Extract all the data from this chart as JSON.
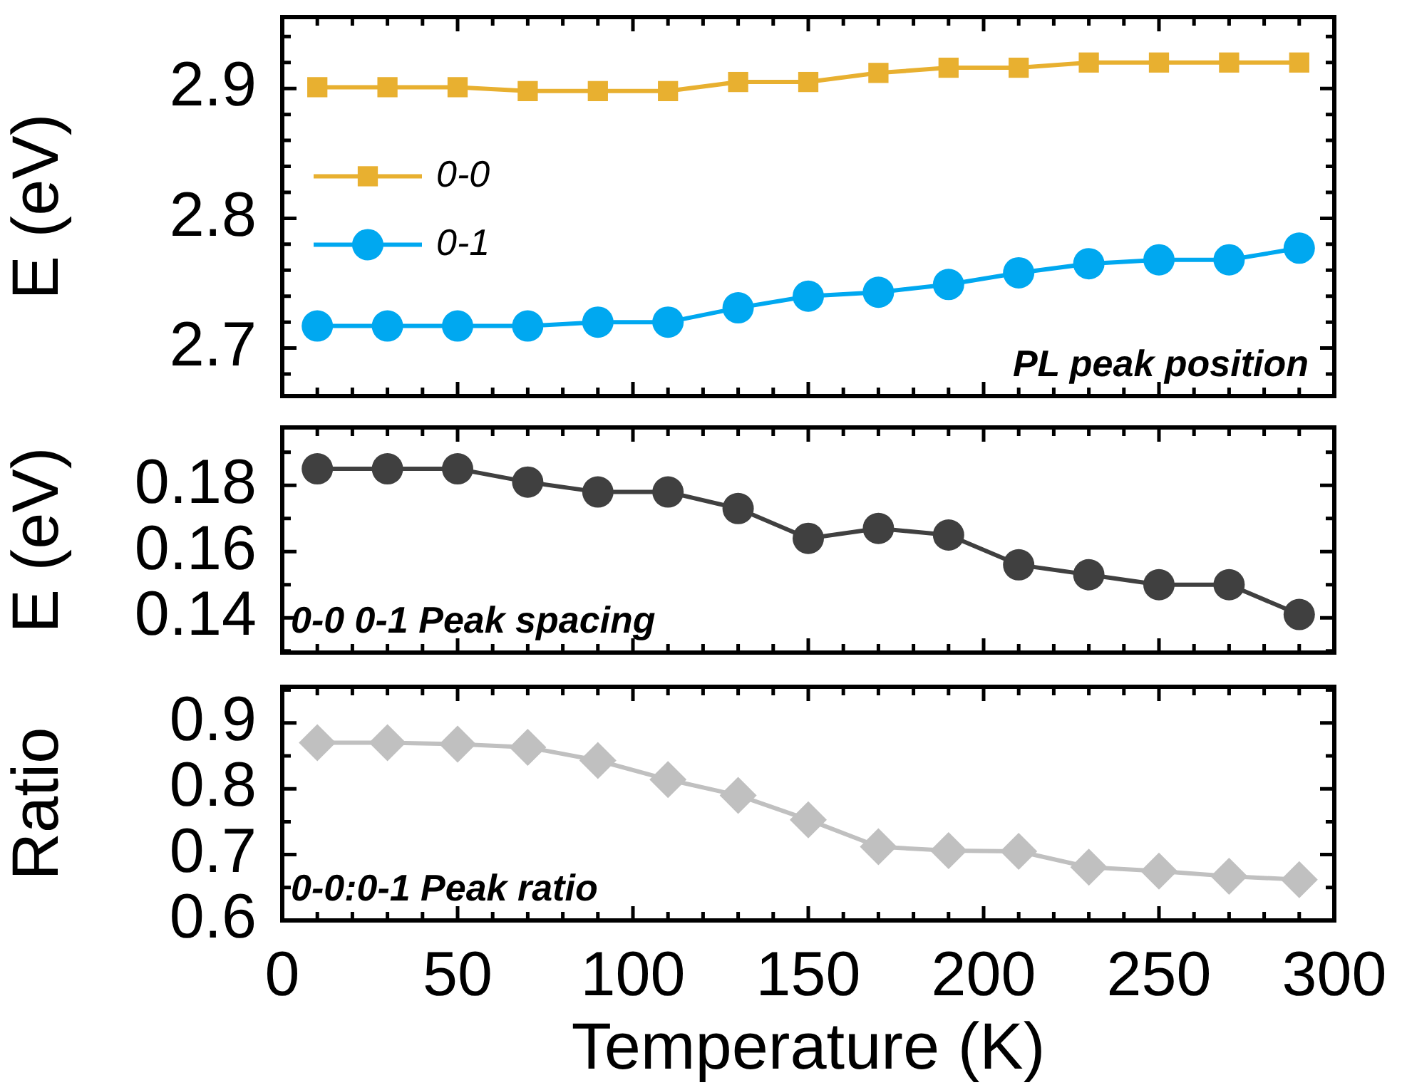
{
  "chart_data": [
    {
      "type": "line",
      "ylabel": "E (eV)",
      "annotations": [
        "PL peak position"
      ],
      "legend": "left",
      "tick_labels": "y",
      "xlim": [
        0,
        300
      ],
      "xticks": [
        0,
        {
          "value": 10,
          "label": null
        },
        {
          "value": 20,
          "label": null
        },
        {
          "value": 30,
          "label": null
        },
        {
          "value": 40,
          "label": null
        },
        {
          "value": 50,
          "label": null
        },
        {
          "value": 60,
          "label": null
        },
        {
          "value": 70,
          "label": null
        },
        {
          "value": 80,
          "label": null
        },
        {
          "value": 90,
          "label": null
        },
        {
          "value": 100,
          "label": null
        },
        {
          "value": 110,
          "label": null
        },
        {
          "value": 120,
          "label": null
        },
        {
          "value": 130,
          "label": null
        },
        {
          "value": 140,
          "label": null
        },
        {
          "value": 150,
          "label": null
        },
        {
          "value": 160,
          "label": null
        },
        {
          "value": 170,
          "label": null
        },
        {
          "value": 180,
          "label": null
        },
        {
          "value": 190,
          "label": null
        },
        {
          "value": 200,
          "label": null
        },
        {
          "value": 210,
          "label": null
        },
        {
          "value": 220,
          "label": null
        },
        {
          "value": 230,
          "label": null
        },
        {
          "value": 240,
          "label": null
        },
        {
          "value": 250,
          "label": null
        },
        {
          "value": 260,
          "label": null
        },
        {
          "value": 270,
          "label": null
        },
        {
          "value": 280,
          "label": null
        },
        {
          "value": 290,
          "label": null
        },
        {
          "value": 300,
          "label": null
        }
      ],
      "ylim": [
        2.663,
        2.955
      ],
      "yticks": [
        {
          "value": 2.68,
          "label": null
        },
        2.7,
        {
          "value": 2.72,
          "label": null
        },
        {
          "value": 2.74,
          "label": null
        },
        {
          "value": 2.76,
          "label": null
        },
        {
          "value": 2.78,
          "label": null
        },
        2.8,
        {
          "value": 2.82,
          "label": null
        },
        {
          "value": 2.84,
          "label": null
        },
        {
          "value": 2.86,
          "label": null
        },
        {
          "value": 2.88,
          "label": null
        },
        2.9,
        {
          "value": 2.92,
          "label": null
        },
        {
          "value": 2.94,
          "label": null
        }
      ],
      "x": [
        10,
        30,
        50,
        70,
        90,
        110,
        130,
        150,
        170,
        190,
        210,
        230,
        250,
        270,
        290
      ],
      "series": [
        {
          "name": "0-0",
          "color": "#e8b030",
          "marker": "square",
          "values": [
            2.901,
            2.901,
            2.901,
            2.898,
            2.898,
            2.898,
            2.905,
            2.905,
            2.912,
            2.916,
            2.916,
            2.92,
            2.92,
            2.92,
            2.92
          ]
        },
        {
          "name": "0-1",
          "color": "#00a8f0",
          "marker": "circle",
          "values": [
            2.717,
            2.717,
            2.717,
            2.717,
            2.72,
            2.72,
            2.731,
            2.74,
            2.743,
            2.749,
            2.758,
            2.765,
            2.768,
            2.768,
            2.777
          ]
        }
      ]
    },
    {
      "type": "line",
      "ylabel": "E (eV)",
      "annotations": [
        "0-0 0-1 Peak spacing"
      ],
      "tick_labels": "y",
      "marker": "circle",
      "xlim": [
        0,
        300
      ],
      "xticks": [
        0,
        {
          "value": 10,
          "label": null
        },
        {
          "value": 20,
          "label": null
        },
        {
          "value": 30,
          "label": null
        },
        {
          "value": 40,
          "label": null
        },
        {
          "value": 50,
          "label": null
        },
        {
          "value": 60,
          "label": null
        },
        {
          "value": 70,
          "label": null
        },
        {
          "value": 80,
          "label": null
        },
        {
          "value": 90,
          "label": null
        },
        {
          "value": 100,
          "label": null
        },
        {
          "value": 110,
          "label": null
        },
        {
          "value": 120,
          "label": null
        },
        {
          "value": 130,
          "label": null
        },
        {
          "value": 140,
          "label": null
        },
        {
          "value": 150,
          "label": null
        },
        {
          "value": 160,
          "label": null
        },
        {
          "value": 170,
          "label": null
        },
        {
          "value": 180,
          "label": null
        },
        {
          "value": 190,
          "label": null
        },
        {
          "value": 200,
          "label": null
        },
        {
          "value": 210,
          "label": null
        },
        {
          "value": 220,
          "label": null
        },
        {
          "value": 230,
          "label": null
        },
        {
          "value": 240,
          "label": null
        },
        {
          "value": 250,
          "label": null
        },
        {
          "value": 260,
          "label": null
        },
        {
          "value": 270,
          "label": null
        },
        {
          "value": 280,
          "label": null
        },
        {
          "value": 290,
          "label": null
        },
        {
          "value": 300,
          "label": null
        }
      ],
      "ylim": [
        0.1295,
        0.1975
      ],
      "yticks": [
        {
          "value": 0.13,
          "label": null
        },
        0.14,
        {
          "value": 0.15,
          "label": null
        },
        0.16,
        {
          "value": 0.17,
          "label": null
        },
        0.18,
        {
          "value": 0.19,
          "label": null
        }
      ],
      "x": [
        10,
        30,
        50,
        70,
        90,
        110,
        130,
        150,
        170,
        190,
        210,
        230,
        250,
        270,
        290
      ],
      "series": [
        {
          "color": "#404040",
          "values": [
            0.185,
            0.185,
            0.185,
            0.181,
            0.178,
            0.178,
            0.173,
            0.164,
            0.167,
            0.165,
            0.156,
            0.153,
            0.15,
            0.15,
            0.141
          ]
        }
      ]
    },
    {
      "type": "line",
      "xlabel": "Temperature (K)",
      "ylabel": "Ratio",
      "annotations": [
        "0-0:0-1 Peak ratio"
      ],
      "marker": "diamond",
      "xlim": [
        0,
        300
      ],
      "xticks": [
        0,
        {
          "value": 10,
          "label": null
        },
        {
          "value": 20,
          "label": null
        },
        {
          "value": 30,
          "label": null
        },
        {
          "value": 40,
          "label": null
        },
        50,
        {
          "value": 60,
          "label": null
        },
        {
          "value": 70,
          "label": null
        },
        {
          "value": 80,
          "label": null
        },
        {
          "value": 90,
          "label": null
        },
        100,
        {
          "value": 110,
          "label": null
        },
        {
          "value": 120,
          "label": null
        },
        {
          "value": 130,
          "label": null
        },
        {
          "value": 140,
          "label": null
        },
        150,
        {
          "value": 160,
          "label": null
        },
        {
          "value": 170,
          "label": null
        },
        {
          "value": 180,
          "label": null
        },
        {
          "value": 190,
          "label": null
        },
        200,
        {
          "value": 210,
          "label": null
        },
        {
          "value": 220,
          "label": null
        },
        {
          "value": 230,
          "label": null
        },
        {
          "value": 240,
          "label": null
        },
        250,
        {
          "value": 260,
          "label": null
        },
        {
          "value": 270,
          "label": null
        },
        {
          "value": 280,
          "label": null
        },
        {
          "value": 290,
          "label": null
        },
        300
      ],
      "ylim": [
        0.6,
        0.955
      ],
      "yticks": [
        0.6,
        {
          "value": 0.65,
          "label": null
        },
        0.7,
        {
          "value": 0.75,
          "label": null
        },
        0.8,
        {
          "value": 0.85,
          "label": null
        },
        0.9,
        {
          "value": 0.95,
          "label": null
        }
      ],
      "x": [
        10,
        30,
        50,
        70,
        90,
        110,
        130,
        150,
        170,
        190,
        210,
        230,
        250,
        270,
        290
      ],
      "series": [
        {
          "color": "#c0c0c0",
          "values": [
            0.87,
            0.87,
            0.868,
            0.863,
            0.843,
            0.814,
            0.79,
            0.753,
            0.712,
            0.706,
            0.705,
            0.681,
            0.675,
            0.667,
            0.662
          ]
        }
      ]
    }
  ]
}
